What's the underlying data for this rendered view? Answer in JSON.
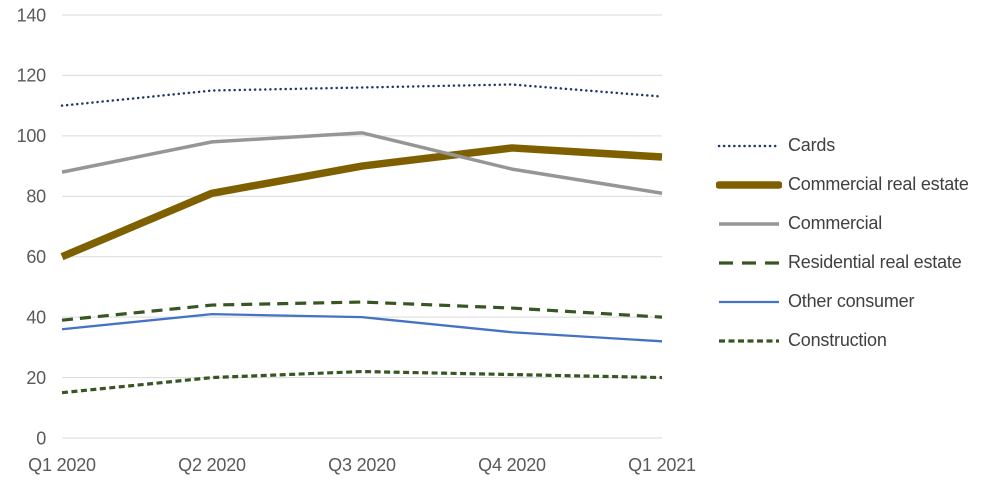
{
  "chart_data": {
    "type": "line",
    "categories": [
      "Q1 2020",
      "Q2 2020",
      "Q3 2020",
      "Q4 2020",
      "Q1 2021"
    ],
    "series": [
      {
        "name": "Cards",
        "values": [
          110,
          115,
          116,
          117,
          113
        ],
        "color": "#1F3864",
        "line_style": "dotted",
        "line_width": 2.5
      },
      {
        "name": "Commercial real estate",
        "values": [
          60,
          81,
          90,
          96,
          93
        ],
        "color": "#7F6000",
        "line_style": "solid",
        "line_width": 7.5
      },
      {
        "name": "Commercial",
        "values": [
          88,
          98,
          101,
          89,
          81
        ],
        "color": "#969696",
        "line_style": "solid",
        "line_width": 3.5
      },
      {
        "name": "Residential real estate",
        "values": [
          39,
          44,
          45,
          43,
          40
        ],
        "color": "#375623",
        "line_style": "dash-long",
        "line_width": 3.2
      },
      {
        "name": "Other consumer",
        "values": [
          36,
          41,
          40,
          35,
          32
        ],
        "color": "#4472C4",
        "line_style": "solid",
        "line_width": 2.3
      },
      {
        "name": "Construction",
        "values": [
          15,
          20,
          22,
          21,
          20
        ],
        "color": "#375623",
        "line_style": "dash-short",
        "line_width": 3.2
      }
    ],
    "ylim": [
      0,
      140
    ],
    "yticks": [
      0,
      20,
      40,
      60,
      80,
      100,
      120,
      140
    ],
    "grid": true,
    "legend_position": "right",
    "gridline_color": "#D9D9D9",
    "axis_text_color": "#595959",
    "legend_text_color": "#404040"
  }
}
